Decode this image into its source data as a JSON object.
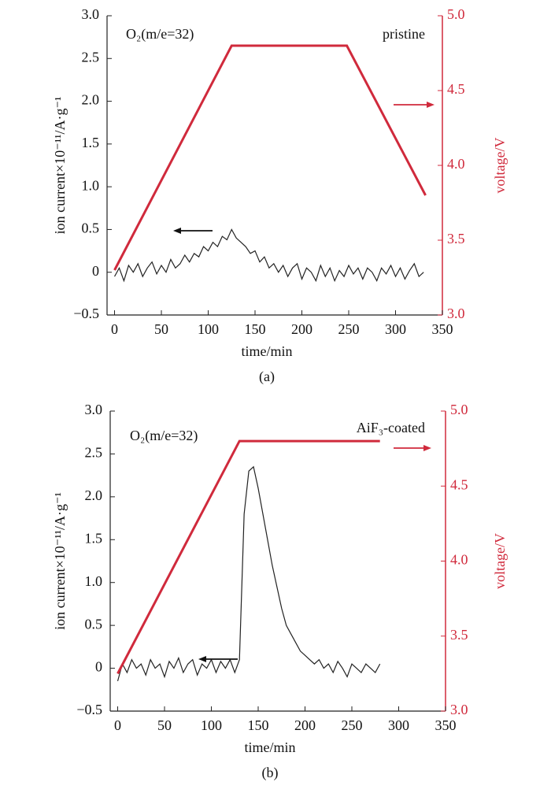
{
  "chart_data": [
    {
      "type": "line",
      "annotation": "O₂(m/e=32)",
      "sample": "pristine",
      "caption": "(a)",
      "xlabel": "time/min",
      "ylabel": "ion current×10⁻¹¹/A·g⁻¹",
      "y2label": "voltage/V",
      "xlim": [
        -8,
        350
      ],
      "xticks": [
        0,
        50,
        100,
        150,
        200,
        250,
        300,
        350
      ],
      "ylim": [
        -0.5,
        3.0
      ],
      "yticks": [
        {
          "value": -0.5,
          "label": "−0.5"
        },
        0,
        {
          "value": 0.5,
          "label": "0.5"
        },
        {
          "value": 1.0,
          "label": "1.0"
        },
        {
          "value": 1.5,
          "label": "1.5"
        },
        {
          "value": 2.0,
          "label": "2.0"
        },
        {
          "value": 2.5,
          "label": "2.5"
        },
        {
          "value": 3.0,
          "label": "3.0"
        }
      ],
      "y2lim": [
        3.0,
        5.0
      ],
      "y2ticks": [
        {
          "value": 3.0,
          "label": "3.0"
        },
        {
          "value": 3.5,
          "label": "3.5"
        },
        {
          "value": 4.0,
          "label": "4.0"
        },
        {
          "value": 4.5,
          "label": "4.5"
        },
        {
          "value": 5.0,
          "label": "5.0"
        }
      ],
      "series": [
        {
          "color": "#222222",
          "x": [
            0,
            5,
            10,
            15,
            20,
            25,
            30,
            35,
            40,
            45,
            50,
            55,
            60,
            65,
            70,
            75,
            80,
            85,
            90,
            95,
            100,
            105,
            110,
            115,
            120,
            125,
            130,
            135,
            140,
            145,
            150,
            155,
            160,
            165,
            170,
            175,
            180,
            185,
            190,
            195,
            200,
            205,
            210,
            215,
            220,
            225,
            230,
            235,
            240,
            245,
            250,
            255,
            260,
            265,
            270,
            275,
            280,
            285,
            290,
            295,
            300,
            305,
            310,
            315,
            320,
            325,
            330
          ],
          "values": [
            -0.05,
            0.05,
            -0.1,
            0.08,
            0,
            0.1,
            -0.05,
            0.05,
            0.12,
            -0.02,
            0.08,
            0,
            0.15,
            0.05,
            0.1,
            0.2,
            0.12,
            0.22,
            0.18,
            0.3,
            0.25,
            0.35,
            0.3,
            0.42,
            0.38,
            0.5,
            0.4,
            0.35,
            0.3,
            0.22,
            0.25,
            0.12,
            0.18,
            0.05,
            0.1,
            0,
            0.08,
            -0.05,
            0.05,
            0.1,
            -0.08,
            0.05,
            0,
            -0.1,
            0.08,
            -0.05,
            0.05,
            -0.1,
            0.02,
            -0.05,
            0.08,
            -0.02,
            0.05,
            -0.08,
            0.05,
            0,
            -0.1,
            0.05,
            -0.02,
            0.08,
            -0.05,
            0.05,
            -0.08,
            0.02,
            0.1,
            -0.05,
            0
          ]
        },
        {
          "color": "#d02a3c",
          "axis": "y2",
          "x": [
            0,
            125,
            248,
            332
          ],
          "values": [
            3.3,
            4.8,
            4.8,
            3.8
          ]
        }
      ]
    },
    {
      "type": "line",
      "annotation": "O₂(m/e=32)",
      "sample": "AiF₃-coated",
      "caption": "(b)",
      "xlabel": "time/min",
      "ylabel": "ion current×10⁻¹¹/A·g⁻¹",
      "y2label": "voltage/V",
      "xlim": [
        -8,
        350
      ],
      "xticks": [
        0,
        50,
        100,
        150,
        200,
        250,
        300,
        350
      ],
      "ylim": [
        -0.5,
        3.0
      ],
      "yticks": [
        {
          "value": -0.5,
          "label": "−0.5"
        },
        0,
        {
          "value": 0.5,
          "label": "0.5"
        },
        {
          "value": 1.0,
          "label": "1.0"
        },
        {
          "value": 1.5,
          "label": "1.5"
        },
        {
          "value": 2.0,
          "label": "2.0"
        },
        {
          "value": 2.5,
          "label": "2.5"
        },
        {
          "value": 3.0,
          "label": "3.0"
        }
      ],
      "y2lim": [
        3.0,
        5.0
      ],
      "y2ticks": [
        {
          "value": 3.0,
          "label": "3.0"
        },
        {
          "value": 3.5,
          "label": "3.5"
        },
        {
          "value": 4.0,
          "label": "4.0"
        },
        {
          "value": 4.5,
          "label": "4.5"
        },
        {
          "value": 5.0,
          "label": "5.0"
        }
      ],
      "series": [
        {
          "color": "#222222",
          "x": [
            0,
            5,
            10,
            15,
            20,
            25,
            30,
            35,
            40,
            45,
            50,
            55,
            60,
            65,
            70,
            75,
            80,
            85,
            90,
            95,
            100,
            105,
            110,
            115,
            120,
            125,
            130,
            135,
            140,
            145,
            150,
            155,
            160,
            165,
            170,
            175,
            180,
            185,
            190,
            195,
            200,
            205,
            210,
            215,
            220,
            225,
            230,
            235,
            240,
            245,
            250,
            255,
            260,
            265,
            270,
            275,
            280
          ],
          "values": [
            -0.15,
            0.05,
            -0.05,
            0.1,
            0,
            0.05,
            -0.08,
            0.1,
            0,
            0.05,
            -0.1,
            0.08,
            0,
            0.12,
            -0.05,
            0.05,
            0.1,
            -0.08,
            0.05,
            0,
            0.1,
            -0.05,
            0.08,
            0,
            0.1,
            -0.05,
            0.1,
            1.8,
            2.3,
            2.35,
            2.1,
            1.8,
            1.5,
            1.2,
            0.95,
            0.7,
            0.5,
            0.4,
            0.3,
            0.2,
            0.15,
            0.1,
            0.05,
            0.1,
            0,
            0.05,
            -0.05,
            0.08,
            0,
            -0.1,
            0.05,
            0,
            -0.05,
            0.05,
            0,
            -0.05,
            0.05
          ]
        },
        {
          "color": "#d02a3c",
          "axis": "y2",
          "x": [
            0,
            130,
            280
          ],
          "values": [
            3.25,
            4.8,
            4.8
          ]
        }
      ]
    }
  ]
}
